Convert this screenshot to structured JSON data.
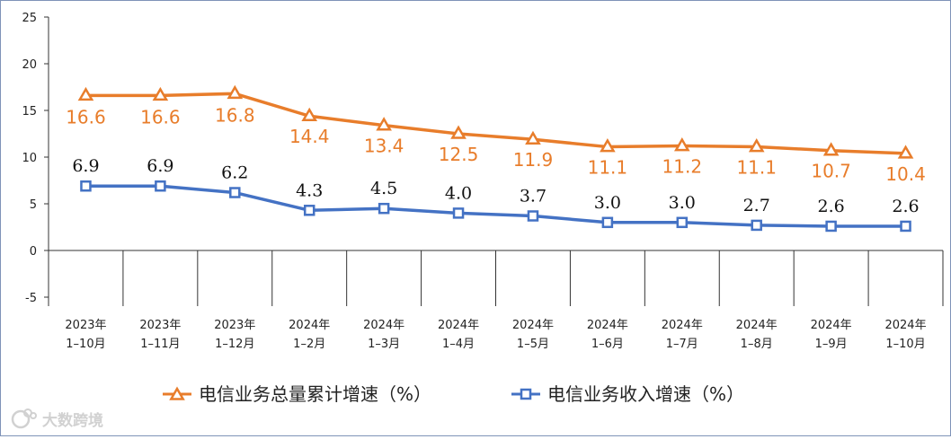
{
  "chart_data": {
    "type": "line",
    "categories": [
      [
        "2023年",
        "1–10月"
      ],
      [
        "2023年",
        "1–11月"
      ],
      [
        "2023年",
        "1–12月"
      ],
      [
        "2024年",
        "1–2月"
      ],
      [
        "2024年",
        "1–3月"
      ],
      [
        "2024年",
        "1–4月"
      ],
      [
        "2024年",
        "1–5月"
      ],
      [
        "2024年",
        "1–6月"
      ],
      [
        "2024年",
        "1–7月"
      ],
      [
        "2024年",
        "1–8月"
      ],
      [
        "2024年",
        "1–9月"
      ],
      [
        "2024年",
        "1–10月"
      ]
    ],
    "ylim": [
      -5,
      25
    ],
    "yticks": [
      -5,
      0,
      5,
      10,
      15,
      20,
      25
    ],
    "series": [
      {
        "name": "电信业务总量累计增速（%）",
        "values": [
          16.6,
          16.6,
          16.8,
          14.4,
          13.4,
          12.5,
          11.9,
          11.1,
          11.2,
          11.1,
          10.7,
          10.4
        ],
        "labels": [
          "16.6",
          "16.6",
          "16.8",
          "14.4",
          "13.4",
          "12.5",
          "11.9",
          "11.1",
          "11.2",
          "11.1",
          "10.7",
          "10.4"
        ],
        "color": "#e87d2b",
        "marker": "triangle"
      },
      {
        "name": "电信业务收入增速（%）",
        "values": [
          6.9,
          6.9,
          6.2,
          4.3,
          4.5,
          4.0,
          3.7,
          3.0,
          3.0,
          2.7,
          2.6,
          2.6
        ],
        "labels": [
          "6.9",
          "6.9",
          "6.2",
          "4.3",
          "4.5",
          "4.0",
          "3.7",
          "3.0",
          "3.0",
          "2.7",
          "2.6",
          "2.6"
        ],
        "color": "#4472c4",
        "marker": "square"
      }
    ],
    "legend_position": "bottom",
    "grid": false
  },
  "watermark": {
    "text": "大数跨境",
    "icon": "watermark-logo-icon"
  }
}
